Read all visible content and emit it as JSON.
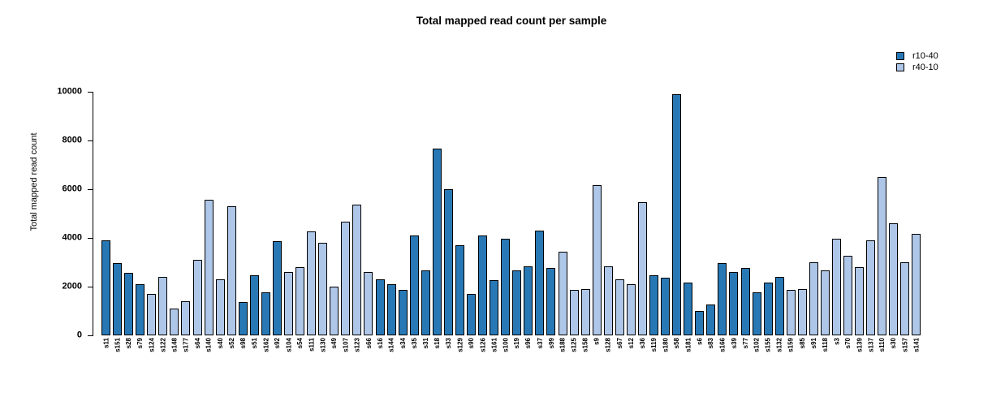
{
  "chart_data": {
    "type": "bar",
    "title": "Total mapped read count per sample",
    "xlabel": "",
    "ylabel": "Total mapped read count",
    "ylim": [
      0,
      10000
    ],
    "yticks": [
      0,
      2000,
      4000,
      6000,
      8000,
      10000
    ],
    "grid": false,
    "legend_position": "top-right",
    "bar_border_color": "#000000",
    "series": [
      {
        "name": "r10-40",
        "color": "#2878B5"
      },
      {
        "name": "r40-10",
        "color": "#AEC6E8"
      }
    ],
    "samples": [
      {
        "label": "s11",
        "value": 3900,
        "series": "r10-40"
      },
      {
        "label": "s151",
        "value": 2950,
        "series": "r10-40"
      },
      {
        "label": "s28",
        "value": 2550,
        "series": "r10-40"
      },
      {
        "label": "s79",
        "value": 2100,
        "series": "r10-40"
      },
      {
        "label": "s124",
        "value": 1700,
        "series": "r40-10"
      },
      {
        "label": "s122",
        "value": 2400,
        "series": "r40-10"
      },
      {
        "label": "s148",
        "value": 1100,
        "series": "r40-10"
      },
      {
        "label": "s177",
        "value": 1400,
        "series": "r40-10"
      },
      {
        "label": "s64",
        "value": 3100,
        "series": "r40-10"
      },
      {
        "label": "s140",
        "value": 5550,
        "series": "r40-10"
      },
      {
        "label": "s40",
        "value": 2300,
        "series": "r40-10"
      },
      {
        "label": "s52",
        "value": 5300,
        "series": "r40-10"
      },
      {
        "label": "s98",
        "value": 1350,
        "series": "r10-40"
      },
      {
        "label": "s51",
        "value": 2450,
        "series": "r10-40"
      },
      {
        "label": "s162",
        "value": 1750,
        "series": "r10-40"
      },
      {
        "label": "s92",
        "value": 3850,
        "series": "r10-40"
      },
      {
        "label": "s104",
        "value": 2600,
        "series": "r40-10"
      },
      {
        "label": "s54",
        "value": 2800,
        "series": "r40-10"
      },
      {
        "label": "s111",
        "value": 4250,
        "series": "r40-10"
      },
      {
        "label": "s130",
        "value": 3800,
        "series": "r40-10"
      },
      {
        "label": "s49",
        "value": 2000,
        "series": "r40-10"
      },
      {
        "label": "s107",
        "value": 4650,
        "series": "r40-10"
      },
      {
        "label": "s123",
        "value": 5350,
        "series": "r40-10"
      },
      {
        "label": "s66",
        "value": 2600,
        "series": "r40-10"
      },
      {
        "label": "s16",
        "value": 2300,
        "series": "r10-40"
      },
      {
        "label": "s144",
        "value": 2100,
        "series": "r10-40"
      },
      {
        "label": "s34",
        "value": 1850,
        "series": "r10-40"
      },
      {
        "label": "s35",
        "value": 4100,
        "series": "r10-40"
      },
      {
        "label": "s31",
        "value": 2650,
        "series": "r10-40"
      },
      {
        "label": "s18",
        "value": 7650,
        "series": "r10-40"
      },
      {
        "label": "s33",
        "value": 6000,
        "series": "r10-40"
      },
      {
        "label": "s129",
        "value": 3700,
        "series": "r10-40"
      },
      {
        "label": "s90",
        "value": 1700,
        "series": "r10-40"
      },
      {
        "label": "s126",
        "value": 4100,
        "series": "r10-40"
      },
      {
        "label": "s161",
        "value": 2250,
        "series": "r10-40"
      },
      {
        "label": "s100",
        "value": 3950,
        "series": "r10-40"
      },
      {
        "label": "s19",
        "value": 2650,
        "series": "r10-40"
      },
      {
        "label": "s96",
        "value": 2850,
        "series": "r10-40"
      },
      {
        "label": "s37",
        "value": 4300,
        "series": "r10-40"
      },
      {
        "label": "s99",
        "value": 2750,
        "series": "r10-40"
      },
      {
        "label": "s188",
        "value": 3450,
        "series": "r40-10"
      },
      {
        "label": "s125",
        "value": 1850,
        "series": "r40-10"
      },
      {
        "label": "s158",
        "value": 1900,
        "series": "r40-10"
      },
      {
        "label": "s9",
        "value": 6150,
        "series": "r40-10"
      },
      {
        "label": "s128",
        "value": 2850,
        "series": "r40-10"
      },
      {
        "label": "s67",
        "value": 2300,
        "series": "r40-10"
      },
      {
        "label": "s12",
        "value": 2100,
        "series": "r40-10"
      },
      {
        "label": "s36",
        "value": 5450,
        "series": "r40-10"
      },
      {
        "label": "s119",
        "value": 2450,
        "series": "r10-40"
      },
      {
        "label": "s180",
        "value": 2350,
        "series": "r10-40"
      },
      {
        "label": "s58",
        "value": 9900,
        "series": "r10-40"
      },
      {
        "label": "s181",
        "value": 2150,
        "series": "r10-40"
      },
      {
        "label": "s6",
        "value": 1000,
        "series": "r10-40"
      },
      {
        "label": "s83",
        "value": 1250,
        "series": "r10-40"
      },
      {
        "label": "s166",
        "value": 2950,
        "series": "r10-40"
      },
      {
        "label": "s39",
        "value": 2600,
        "series": "r10-40"
      },
      {
        "label": "s77",
        "value": 2750,
        "series": "r10-40"
      },
      {
        "label": "s102",
        "value": 1750,
        "series": "r10-40"
      },
      {
        "label": "s155",
        "value": 2150,
        "series": "r10-40"
      },
      {
        "label": "s132",
        "value": 2400,
        "series": "r10-40"
      },
      {
        "label": "s159",
        "value": 1850,
        "series": "r40-10"
      },
      {
        "label": "s85",
        "value": 1900,
        "series": "r40-10"
      },
      {
        "label": "s91",
        "value": 3000,
        "series": "r40-10"
      },
      {
        "label": "s118",
        "value": 2650,
        "series": "r40-10"
      },
      {
        "label": "s3",
        "value": 3950,
        "series": "r40-10"
      },
      {
        "label": "s70",
        "value": 3250,
        "series": "r40-10"
      },
      {
        "label": "s139",
        "value": 2800,
        "series": "r40-10"
      },
      {
        "label": "s137",
        "value": 3900,
        "series": "r40-10"
      },
      {
        "label": "s110",
        "value": 6500,
        "series": "r40-10"
      },
      {
        "label": "s30",
        "value": 4600,
        "series": "r40-10"
      },
      {
        "label": "s157",
        "value": 3000,
        "series": "r40-10"
      },
      {
        "label": "s141",
        "value": 4150,
        "series": "r40-10"
      }
    ]
  }
}
